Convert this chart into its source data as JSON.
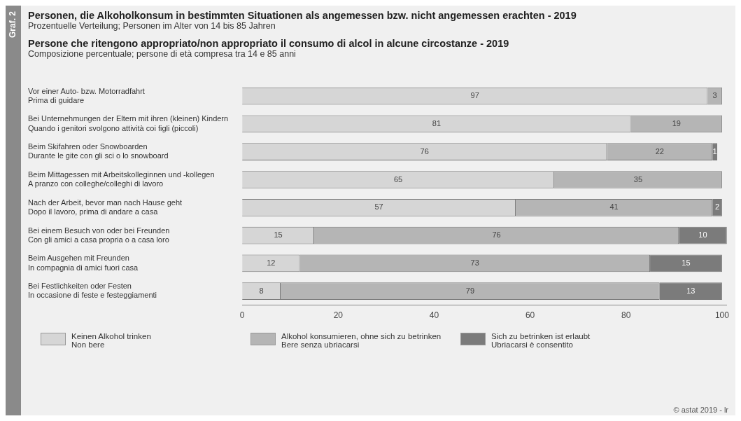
{
  "chart_data": {
    "type": "bar",
    "orientation": "horizontal",
    "stacked": true,
    "title": "Personen, die Alkoholkonsum in bestimmten Situationen als angemessen bzw. nicht angemessen erachten - 2019",
    "subtitle": "Prozentuelle Verteilung; Personen im Alter von 14 bis 85 Jahren",
    "annotations": [
      "Persone che ritengono appropriato/non appropriato il consumo di alcol in alcune circostanze - 2019",
      "Composizione percentuale; persone di età compresa tra 14 e 85 anni",
      "Graf. 2",
      "© astat 2019 - lr"
    ],
    "categories": [
      "Vor einer Auto- bzw. Motorradfahrt\nPrima di guidare",
      "Bei Unternehmungen der Eltern mit ihren (kleinen) Kindern\nQuando i genitori svolgono attività coi figli (piccoli)",
      "Beim Skifahren oder Snowboarden\nDurante le gite con gli sci o lo snowboard",
      "Beim Mittagessen mit Arbeitskolleginnen und -kollegen\nA pranzo con colleghe/colleghi di lavoro",
      "Nach der Arbeit, bevor man nach Hause geht\nDopo il lavoro, prima di andare a casa",
      "Bei einem Besuch von oder bei Freunden\nCon gli amici a casa propria o a casa loro",
      "Beim Ausgehen mit Freunden\nIn compagnia di amici fuori casa",
      "Bei Festlichkeiten oder Festen\nIn occasione di feste e festeggiamenti"
    ],
    "series": [
      {
        "name": "Keinen Alkohol trinken\nNon bere",
        "color": "#d6d6d6",
        "values": [
          97,
          81,
          76,
          65,
          57,
          15,
          12,
          8
        ]
      },
      {
        "name": "Alkohol konsumieren, ohne sich zu betrinken\nBere senza ubriacarsi",
        "color": "#b5b5b5",
        "values": [
          3,
          19,
          22,
          35,
          41,
          76,
          73,
          79
        ]
      },
      {
        "name": "Sich zu betrinken ist erlaubt\nUbriacarsi è consentito",
        "color": "#7b7b7b",
        "values": [
          null,
          null,
          1,
          null,
          2,
          10,
          15,
          13
        ]
      }
    ],
    "xlim": [
      0,
      101
    ],
    "xticks": [
      0,
      20,
      40,
      60,
      80,
      100
    ],
    "grid": false,
    "legend": "bottom",
    "data_labels": true
  }
}
